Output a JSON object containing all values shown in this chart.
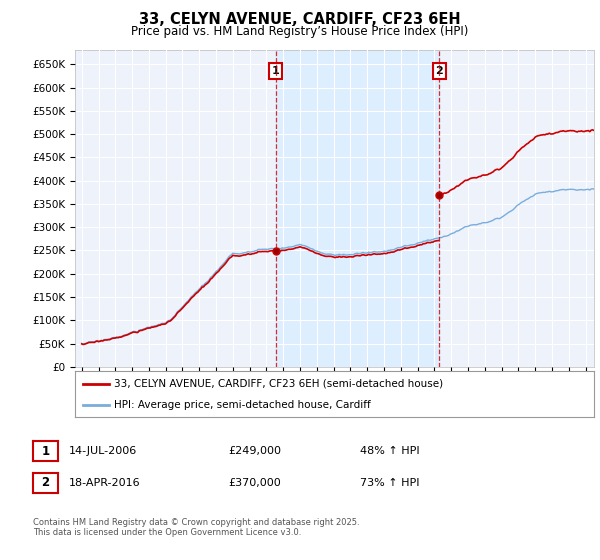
{
  "title": "33, CELYN AVENUE, CARDIFF, CF23 6EH",
  "subtitle": "Price paid vs. HM Land Registry’s House Price Index (HPI)",
  "ylim": [
    0,
    680000
  ],
  "yticks": [
    0,
    50000,
    100000,
    150000,
    200000,
    250000,
    300000,
    350000,
    400000,
    450000,
    500000,
    550000,
    600000,
    650000
  ],
  "ytick_labels": [
    "£0",
    "£50K",
    "£100K",
    "£150K",
    "£200K",
    "£250K",
    "£300K",
    "£350K",
    "£400K",
    "£450K",
    "£500K",
    "£550K",
    "£600K",
    "£650K"
  ],
  "house_color": "#cc0000",
  "hpi_color": "#7aaddb",
  "shade_color": "#ddeeff",
  "marker1_date_x": 2006.54,
  "marker1_y": 249000,
  "marker2_date_x": 2016.29,
  "marker2_y": 370000,
  "vline1_x": 2006.54,
  "vline2_x": 2016.29,
  "legend_house": "33, CELYN AVENUE, CARDIFF, CF23 6EH (semi-detached house)",
  "legend_hpi": "HPI: Average price, semi-detached house, Cardiff",
  "note1_date": "14-JUL-2006",
  "note1_price": "£249,000",
  "note1_hpi": "48% ↑ HPI",
  "note2_date": "18-APR-2016",
  "note2_price": "£370,000",
  "note2_hpi": "73% ↑ HPI",
  "footnote": "Contains HM Land Registry data © Crown copyright and database right 2025.\nThis data is licensed under the Open Government Licence v3.0.",
  "background_color": "#eef2fb",
  "grid_color": "#ffffff",
  "xlim_start": 1994.6,
  "xlim_end": 2025.5
}
